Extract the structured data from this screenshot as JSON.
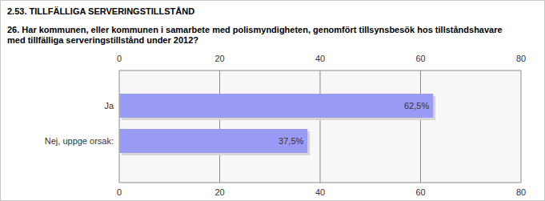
{
  "chart_data": {
    "type": "bar",
    "orientation": "horizontal",
    "title": "2.53. TILLFÄLLIGA SERVERINGSTILLSTÅND",
    "subtitle": "26. Har kommunen, eller kommunen i samarbete med polismyndigheten, genomfört tillsynsbesök hos tillståndshavare med tillfälliga serveringstillstånd under 2012?",
    "categories": [
      "Ja",
      "Nej, uppge orsak:"
    ],
    "values": [
      62.5,
      37.5
    ],
    "value_labels": [
      "62,5%",
      "37,5%"
    ],
    "color": "#9b9bf5",
    "xlim": [
      0,
      80
    ],
    "xticks": [
      0,
      20,
      40,
      60,
      80
    ],
    "grid": true,
    "data_labels": true
  }
}
